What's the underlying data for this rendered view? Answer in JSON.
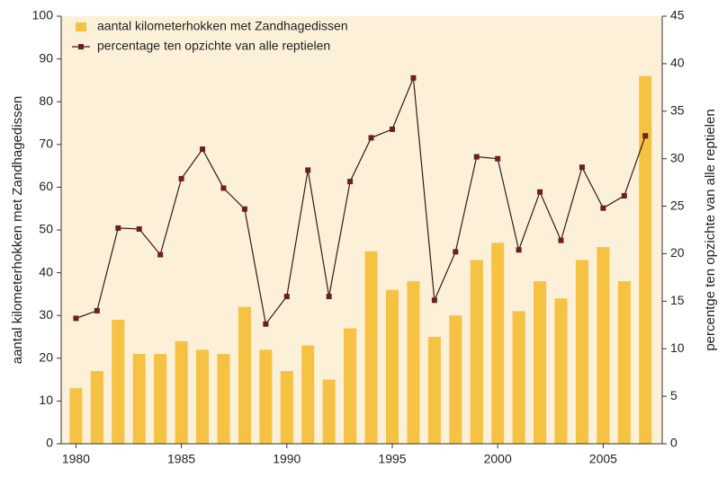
{
  "chart_data": {
    "type": "combo",
    "x": [
      1980,
      1981,
      1982,
      1983,
      1984,
      1985,
      1986,
      1987,
      1988,
      1989,
      1990,
      1991,
      1992,
      1993,
      1994,
      1995,
      1996,
      1997,
      1998,
      1999,
      2000,
      2001,
      2002,
      2003,
      2004,
      2005,
      2006,
      2007
    ],
    "series": [
      {
        "name": "aantal kilometerhokken met Zandhagedissen",
        "type": "bar",
        "color": "#f5c243",
        "values": [
          13,
          17,
          29,
          21,
          21,
          24,
          22,
          21,
          32,
          22,
          17,
          23,
          15,
          27,
          45,
          36,
          38,
          25,
          30,
          43,
          47,
          31,
          38,
          34,
          43,
          46,
          38,
          86
        ]
      },
      {
        "name": "percentage ten opzichte van alle reptielen",
        "type": "line",
        "axis": "y2",
        "color": "#3a1616",
        "marker_color": "#6b2020",
        "values": [
          13.2,
          14.0,
          22.7,
          22.6,
          19.9,
          27.9,
          31.0,
          26.9,
          24.7,
          12.6,
          15.5,
          28.8,
          15.5,
          27.6,
          32.2,
          33.1,
          38.5,
          15.1,
          20.2,
          30.2,
          30.0,
          20.4,
          26.5,
          21.4,
          29.1,
          24.8,
          26.1,
          32.4
        ]
      }
    ],
    "ylabel": "aantal kilometerhokken met Zandhagedissen",
    "y2label": "percentge ten opzichte van alle reptielen",
    "xlim": [
      1979.3,
      2007.8
    ],
    "xticks": [
      1980,
      1985,
      1990,
      1995,
      2000,
      2005
    ],
    "ylim": [
      0,
      100
    ],
    "yticks": [
      0,
      10,
      20,
      30,
      40,
      50,
      60,
      70,
      80,
      90,
      100
    ],
    "y2lim": [
      0,
      45
    ],
    "y2ticks": [
      0,
      5,
      10,
      15,
      20,
      25,
      30,
      35,
      40,
      45
    ],
    "background": "#fcf1d8",
    "legend": "upper left",
    "grid": false
  }
}
